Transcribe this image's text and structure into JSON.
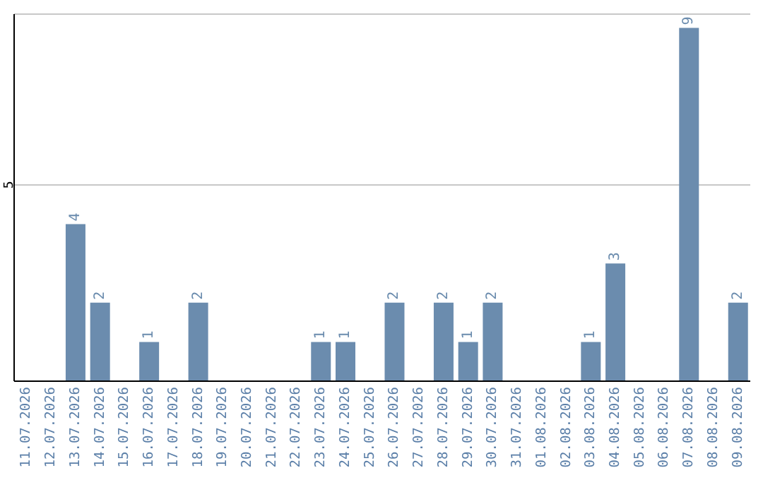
{
  "chart_data": {
    "type": "bar",
    "categories": [
      "11.07.2026",
      "12.07.2026",
      "13.07.2026",
      "14.07.2026",
      "15.07.2026",
      "16.07.2026",
      "17.07.2026",
      "18.07.2026",
      "19.07.2026",
      "20.07.2026",
      "21.07.2026",
      "22.07.2026",
      "23.07.2026",
      "24.07.2026",
      "25.07.2026",
      "26.07.2026",
      "27.07.2026",
      "28.07.2026",
      "29.07.2026",
      "30.07.2026",
      "31.07.2026",
      "01.08.2026",
      "02.08.2026",
      "03.08.2026",
      "04.08.2026",
      "05.08.2026",
      "06.08.2026",
      "07.08.2026",
      "08.08.2026",
      "09.08.2026"
    ],
    "values": [
      0,
      0,
      4,
      2,
      0,
      1,
      0,
      2,
      0,
      0,
      0,
      0,
      1,
      1,
      0,
      2,
      0,
      2,
      1,
      2,
      0,
      0,
      0,
      1,
      3,
      0,
      0,
      9,
      0,
      2
    ],
    "value_labels": [
      null,
      null,
      "4",
      "2",
      null,
      "1",
      null,
      "2",
      null,
      null,
      null,
      null,
      "1",
      "1",
      null,
      "2",
      null,
      "2",
      "1",
      "2",
      null,
      null,
      null,
      "1",
      "3",
      null,
      null,
      "9",
      null,
      "2"
    ],
    "color": "#6b8cae",
    "ylim": [
      0,
      9.35
    ],
    "yticks": [
      5
    ],
    "grid": "y"
  }
}
